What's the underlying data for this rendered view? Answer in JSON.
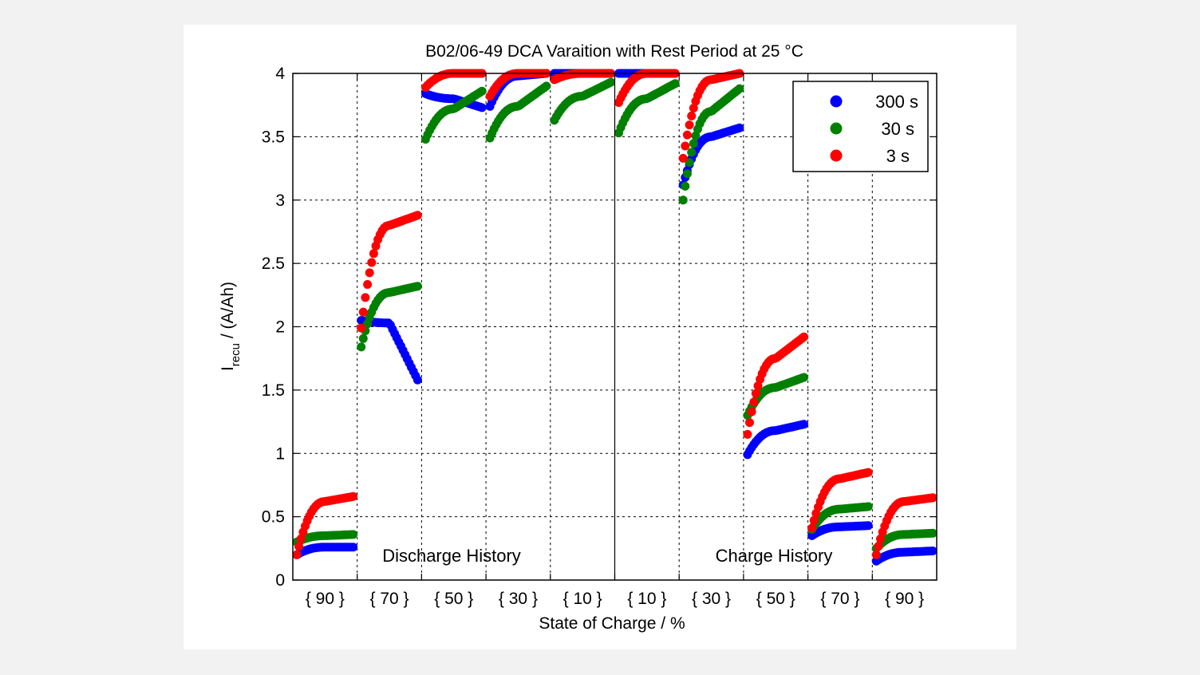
{
  "chart_data": {
    "type": "scatter",
    "title": "B02/06-49 DCA Varaition with Rest Period at 25 °C",
    "xlabel": "State of Charge / %",
    "ylabel_main": "I",
    "ylabel_sub": "recu",
    "ylabel_suffix": " / (A/Ah)",
    "ylim": [
      0,
      4
    ],
    "yticks": [
      "0",
      "0.5",
      "1",
      "1.5",
      "2",
      "2.5",
      "3",
      "3.5",
      "4"
    ],
    "y_tick_values": [
      0,
      0.5,
      1,
      1.5,
      2,
      2.5,
      3,
      3.5,
      4
    ],
    "xlim": [
      0,
      10
    ],
    "x_tick_labels": [
      "{ 90 }",
      "{ 70 }",
      "{ 50 }",
      "{ 30 }",
      "{ 10 }",
      "{ 10 }",
      "{ 30 }",
      "{ 50 }",
      "{ 70 }",
      "{ 90 }"
    ],
    "grid": true,
    "legend_position": "top-right",
    "annotations": [
      "Discharge History",
      "Charge History"
    ],
    "segments": [
      {
        "series": {
          "300 s": [
            0.2,
            0.26,
            0.26
          ],
          "30 s": [
            0.3,
            0.35,
            0.36
          ],
          "3 s": [
            0.2,
            0.62,
            0.66
          ]
        }
      },
      {
        "series": {
          "300 s": [
            2.05,
            2.03,
            1.58
          ],
          "30 s": [
            1.84,
            2.27,
            2.32
          ],
          "3 s": [
            1.99,
            2.8,
            2.88
          ]
        }
      },
      {
        "series": {
          "300 s": [
            3.84,
            3.8,
            3.73
          ],
          "30 s": [
            3.48,
            3.72,
            3.86
          ],
          "3 s": [
            3.89,
            4.0,
            4.0
          ]
        }
      },
      {
        "series": {
          "300 s": [
            3.74,
            3.98,
            4.0
          ],
          "30 s": [
            3.49,
            3.74,
            3.9
          ],
          "3 s": [
            3.82,
            4.0,
            4.0
          ]
        }
      },
      {
        "series": {
          "300 s": [
            4.0,
            4.0,
            4.0
          ],
          "30 s": [
            3.63,
            3.82,
            3.93
          ],
          "3 s": [
            3.95,
            4.0,
            4.0
          ]
        }
      },
      {
        "series": {
          "300 s": [
            4.0,
            4.0,
            4.0
          ],
          "30 s": [
            3.53,
            3.8,
            3.92
          ],
          "3 s": [
            3.77,
            4.0,
            4.0
          ]
        }
      },
      {
        "series": {
          "300 s": [
            3.12,
            3.5,
            3.57
          ],
          "30 s": [
            3.0,
            3.7,
            3.88
          ],
          "3 s": [
            3.33,
            3.95,
            4.0
          ]
        }
      },
      {
        "series": {
          "300 s": [
            0.99,
            1.18,
            1.23
          ],
          "30 s": [
            1.3,
            1.52,
            1.6
          ],
          "3 s": [
            1.15,
            1.75,
            1.92
          ]
        }
      },
      {
        "series": {
          "300 s": [
            0.35,
            0.42,
            0.43
          ],
          "30 s": [
            0.4,
            0.56,
            0.58
          ],
          "3 s": [
            0.41,
            0.8,
            0.85
          ]
        }
      },
      {
        "series": {
          "300 s": [
            0.15,
            0.22,
            0.23
          ],
          "30 s": [
            0.25,
            0.36,
            0.37
          ],
          "3 s": [
            0.2,
            0.62,
            0.65
          ]
        }
      }
    ],
    "legend": [
      {
        "name": "300 s",
        "color": "#0000ff"
      },
      {
        "name": "30 s",
        "color": "#008000"
      },
      {
        "name": "3 s",
        "color": "#ff0000"
      }
    ]
  }
}
